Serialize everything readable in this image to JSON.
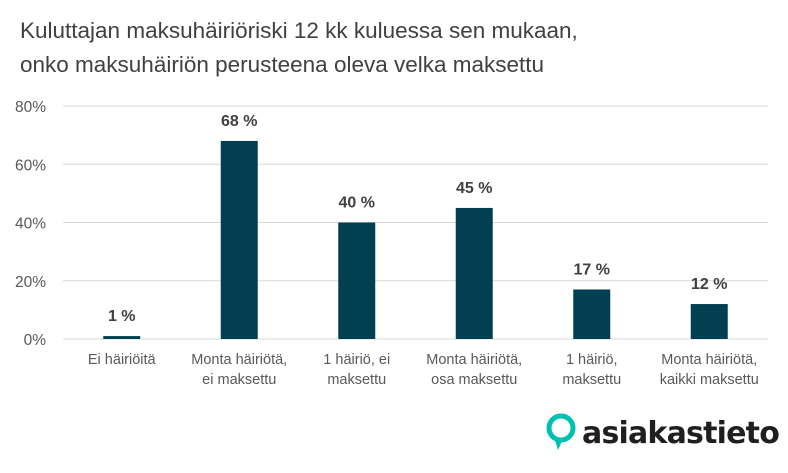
{
  "title_lines": [
    "Kuluttajan maksuhäiriöriski 12 kk kuluessa sen mukaan,",
    "onko maksuhäiriön perusteena oleva velka maksettu"
  ],
  "logo": {
    "text": "asiakastieto",
    "icon": "location-pin-icon",
    "accent": "#00c0b0"
  },
  "colors": {
    "bar": "#004050",
    "grid": "#d9d9d9",
    "axis_text": "#595959",
    "label_text": "#404040"
  },
  "chart_data": {
    "type": "bar",
    "categories": [
      [
        "Ei häiriöitä"
      ],
      [
        "Monta häiriötä,",
        "ei maksettu"
      ],
      [
        "1 häiriö, ei",
        "maksettu"
      ],
      [
        "Monta häiriötä,",
        "osa maksettu"
      ],
      [
        "1 häiriö,",
        "maksettu"
      ],
      [
        "Monta häiriötä,",
        "kaikki maksettu"
      ]
    ],
    "values": [
      1,
      68,
      40,
      45,
      17,
      12
    ],
    "data_labels": [
      "1 %",
      "68 %",
      "40 %",
      "45 %",
      "17 %",
      "12 %"
    ],
    "ylim": [
      0,
      80
    ],
    "yticks": [
      0,
      20,
      40,
      60,
      80
    ],
    "ytick_labels": [
      "0%",
      "20%",
      "40%",
      "60%",
      "80%"
    ],
    "grid": true,
    "legend": "none"
  }
}
